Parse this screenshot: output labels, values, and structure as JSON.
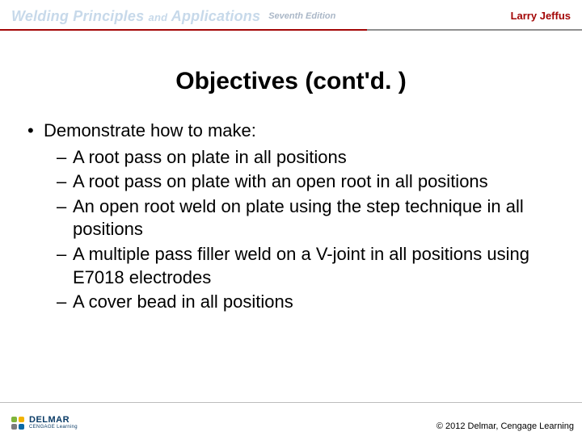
{
  "header": {
    "title_main_1": "Welding Principles",
    "title_and": "and",
    "title_main_2": "Applications",
    "edition": "Seventh Edition",
    "author": "Larry Jeffus",
    "rule_left_color": "#a30606",
    "rule_right_color": "#8f8f8f",
    "title_color": "#c7d9ea"
  },
  "slide": {
    "title": "Objectives (cont'd. )",
    "bullet1": "Demonstrate how to make:",
    "subitems": {
      "a": "A root pass on plate in all positions",
      "b": "A root pass on plate with an open root in all positions",
      "c": "An open root weld on plate using the step technique in all positions",
      "d": "A multiple pass filler weld on a V-joint in all positions using E7018 electrodes",
      "e": "A cover bead in all positions"
    }
  },
  "footer": {
    "copyright": "© 2012 Delmar, Cengage Learning",
    "logo_brand": "DELMAR",
    "logo_tagline": "CENGAGE Learning",
    "logo_colors": {
      "p1": "#7fb53a",
      "p2": "#f2b300",
      "p3": "#0a6aa6",
      "p4": "#7c7c7c"
    }
  }
}
